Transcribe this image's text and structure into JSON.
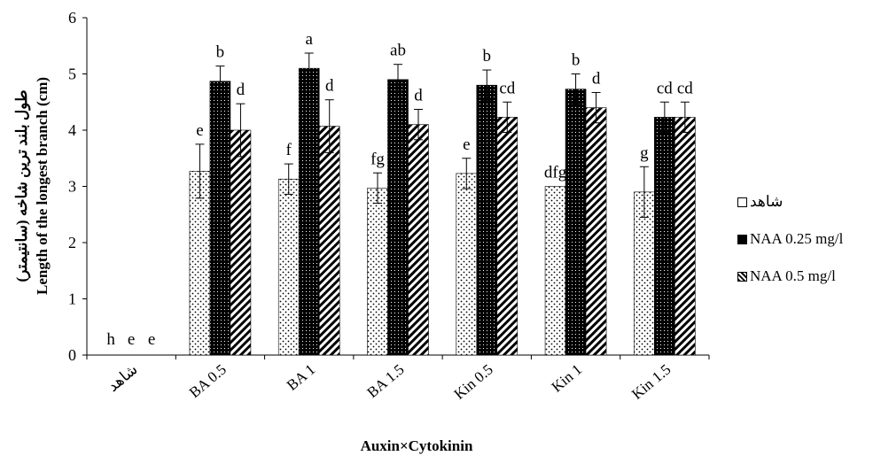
{
  "chart_data": {
    "type": "bar",
    "title": "",
    "xlabel": "Auxin×Cytokinin",
    "ylabel_fa": "طول بلند ترین شاخه (سانتیمتر)",
    "ylabel_en": "Length of the longest branch (cm)",
    "ylim": [
      0,
      6
    ],
    "yticks": [
      "0",
      "1",
      "2",
      "3",
      "4",
      "5",
      "6"
    ],
    "categories": [
      "شاهد",
      "BA 0.5",
      "BA 1",
      "BA 1.5",
      "Kin 0.5",
      "Kin 1",
      "Kin 1.5"
    ],
    "series": [
      {
        "name": "شاهد",
        "pattern": "dots",
        "values": [
          0,
          3.27,
          3.13,
          2.97,
          3.23,
          3.0,
          2.9
        ],
        "errors": [
          0,
          0.48,
          0.27,
          0.27,
          0.27,
          0,
          0.45
        ],
        "labels": [
          "h",
          "e",
          "f",
          "fg",
          "e",
          "dfg",
          "g"
        ]
      },
      {
        "name": "NAA 0.25 mg/l",
        "pattern": "solid",
        "values": [
          0,
          4.87,
          5.1,
          4.9,
          4.8,
          4.73,
          4.23
        ],
        "errors": [
          0,
          0.27,
          0.27,
          0.27,
          0.27,
          0.27,
          0.27
        ],
        "labels": [
          "e",
          "b",
          "a",
          "ab",
          "b",
          "b",
          "cd"
        ]
      },
      {
        "name": "NAA 0.5 mg/l",
        "pattern": "hatch",
        "values": [
          0,
          4.0,
          4.07,
          4.1,
          4.23,
          4.4,
          4.23
        ],
        "errors": [
          0,
          0.47,
          0.47,
          0.27,
          0.27,
          0.27,
          0.27
        ],
        "labels": [
          "e",
          "d",
          "d",
          "d",
          "cd",
          "d",
          "cd"
        ]
      }
    ],
    "legend_position": "right"
  }
}
